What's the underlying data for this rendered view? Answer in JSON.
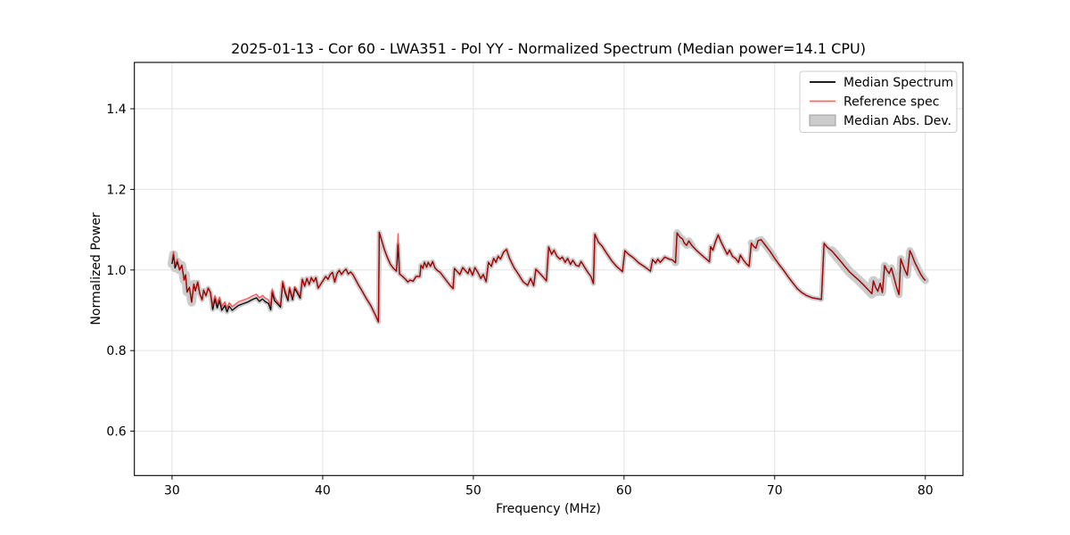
{
  "figure": {
    "title": "2025-01-13 - Cor 60 - LWA351 - Pol YY - Normalized Spectrum (Median power=14.1 CPU)"
  },
  "chart_data": {
    "type": "line",
    "title": "2025-01-13 - Cor 60 - LWA351 - Pol YY - Normalized Spectrum (Median power=14.1 CPU)",
    "xlabel": "Frequency (MHz)",
    "ylabel": "Normalized Power",
    "xlim": [
      27.5,
      82.5
    ],
    "ylim": [
      0.49,
      1.515
    ],
    "xticks": [
      "30",
      "40",
      "50",
      "60",
      "70",
      "80"
    ],
    "yticks": [
      "0.6",
      "0.8",
      "1.0",
      "1.2",
      "1.4"
    ],
    "grid": true,
    "grid_color": "#e2e2e2",
    "background": "#ffffff",
    "legend": {
      "position": "upper right",
      "entries": [
        {
          "label": "Median Spectrum",
          "type": "line",
          "color": "#000000"
        },
        {
          "label": "Reference spec",
          "type": "line",
          "color": "#ff6666"
        },
        {
          "label": "Median Abs. Dev.",
          "type": "patch",
          "color": "#cccccc"
        }
      ]
    },
    "series": [
      {
        "name": "Median Spectrum",
        "color": "#000000",
        "line_width": 1.3,
        "points": [
          [
            30.0,
            1.015
          ],
          [
            30.1,
            1.038
          ],
          [
            30.2,
            1.005
          ],
          [
            30.35,
            1.02
          ],
          [
            30.5,
            1.0
          ],
          [
            30.65,
            1.012
          ],
          [
            30.8,
            0.975
          ],
          [
            30.9,
            0.988
          ],
          [
            31.0,
            0.945
          ],
          [
            31.15,
            0.957
          ],
          [
            31.3,
            0.92
          ],
          [
            31.45,
            0.965
          ],
          [
            31.55,
            0.948
          ],
          [
            31.7,
            0.97
          ],
          [
            31.85,
            0.94
          ],
          [
            32.0,
            0.926
          ],
          [
            32.1,
            0.95
          ],
          [
            32.25,
            0.936
          ],
          [
            32.4,
            0.955
          ],
          [
            32.55,
            0.944
          ],
          [
            32.7,
            0.902
          ],
          [
            32.85,
            0.928
          ],
          [
            33.0,
            0.906
          ],
          [
            33.15,
            0.924
          ],
          [
            33.3,
            0.9
          ],
          [
            33.5,
            0.912
          ],
          [
            33.65,
            0.896
          ],
          [
            33.8,
            0.91
          ],
          [
            34.0,
            0.9
          ],
          [
            34.2,
            0.906
          ],
          [
            34.4,
            0.912
          ],
          [
            34.7,
            0.916
          ],
          [
            35.0,
            0.92
          ],
          [
            35.3,
            0.926
          ],
          [
            35.6,
            0.931
          ],
          [
            35.8,
            0.922
          ],
          [
            36.0,
            0.928
          ],
          [
            36.2,
            0.921
          ],
          [
            36.4,
            0.917
          ],
          [
            36.55,
            0.901
          ],
          [
            36.65,
            0.944
          ],
          [
            36.8,
            0.924
          ],
          [
            37.0,
            0.916
          ],
          [
            37.2,
            0.908
          ],
          [
            37.35,
            0.968
          ],
          [
            37.5,
            0.944
          ],
          [
            37.7,
            0.924
          ],
          [
            37.8,
            0.953
          ],
          [
            38.0,
            0.926
          ],
          [
            38.15,
            0.954
          ],
          [
            38.3,
            0.944
          ],
          [
            38.5,
            0.93
          ],
          [
            38.65,
            0.977
          ],
          [
            38.8,
            0.96
          ],
          [
            38.95,
            0.979
          ],
          [
            39.1,
            0.964
          ],
          [
            39.25,
            0.981
          ],
          [
            39.4,
            0.971
          ],
          [
            39.55,
            0.981
          ],
          [
            39.7,
            0.955
          ],
          [
            39.85,
            0.964
          ],
          [
            40.0,
            0.972
          ],
          [
            40.2,
            0.984
          ],
          [
            40.35,
            0.977
          ],
          [
            40.5,
            0.989
          ],
          [
            40.65,
            0.994
          ],
          [
            40.8,
            0.97
          ],
          [
            40.95,
            0.991
          ],
          [
            41.1,
            0.999
          ],
          [
            41.25,
            0.989
          ],
          [
            41.4,
            0.997
          ],
          [
            41.55,
            1.002
          ],
          [
            41.7,
            0.99
          ],
          [
            41.85,
            0.995
          ],
          [
            42.0,
            0.989
          ],
          [
            42.2,
            0.975
          ],
          [
            42.4,
            0.961
          ],
          [
            42.6,
            0.949
          ],
          [
            42.9,
            0.929
          ],
          [
            43.2,
            0.911
          ],
          [
            43.5,
            0.888
          ],
          [
            43.7,
            0.871
          ],
          [
            43.76,
            1.093
          ],
          [
            43.9,
            1.075
          ],
          [
            44.1,
            1.05
          ],
          [
            44.3,
            1.03
          ],
          [
            44.5,
            1.014
          ],
          [
            44.7,
            1.004
          ],
          [
            44.9,
            0.997
          ],
          [
            45.0,
            1.062
          ],
          [
            45.1,
            0.99
          ],
          [
            45.3,
            0.984
          ],
          [
            45.5,
            0.977
          ],
          [
            45.65,
            0.97
          ],
          [
            45.8,
            0.975
          ],
          [
            46.0,
            0.972
          ],
          [
            46.2,
            0.984
          ],
          [
            46.45,
            0.984
          ],
          [
            46.52,
            1.012
          ],
          [
            46.65,
            1.004
          ],
          [
            46.75,
            1.019
          ],
          [
            46.9,
            1.007
          ],
          [
            47.0,
            1.019
          ],
          [
            47.15,
            1.009
          ],
          [
            47.3,
            1.021
          ],
          [
            47.45,
            1.005
          ],
          [
            47.6,
            0.999
          ],
          [
            47.8,
            0.994
          ],
          [
            48.0,
            0.984
          ],
          [
            48.2,
            0.974
          ],
          [
            48.45,
            0.962
          ],
          [
            48.65,
            0.954
          ],
          [
            48.75,
            1.004
          ],
          [
            48.9,
            0.997
          ],
          [
            49.1,
            0.989
          ],
          [
            49.3,
            1.006
          ],
          [
            49.5,
            0.997
          ],
          [
            49.65,
            0.991
          ],
          [
            49.75,
            1.004
          ],
          [
            49.95,
            0.987
          ],
          [
            50.1,
            1.006
          ],
          [
            50.3,
            0.994
          ],
          [
            50.5,
            0.979
          ],
          [
            50.65,
            0.989
          ],
          [
            50.85,
            0.971
          ],
          [
            51.0,
            1.019
          ],
          [
            51.2,
            1.009
          ],
          [
            51.35,
            1.029
          ],
          [
            51.5,
            1.019
          ],
          [
            51.65,
            1.034
          ],
          [
            51.8,
            1.027
          ],
          [
            52.0,
            1.044
          ],
          [
            52.2,
            1.051
          ],
          [
            52.4,
            1.029
          ],
          [
            52.7,
            1.006
          ],
          [
            53.0,
            0.989
          ],
          [
            53.3,
            0.971
          ],
          [
            53.6,
            0.962
          ],
          [
            53.8,
            0.979
          ],
          [
            54.0,
            0.961
          ],
          [
            54.15,
            1.002
          ],
          [
            54.35,
            0.994
          ],
          [
            54.6,
            0.984
          ],
          [
            54.85,
            0.973
          ],
          [
            55.0,
            1.057
          ],
          [
            55.2,
            1.039
          ],
          [
            55.35,
            1.049
          ],
          [
            55.55,
            1.034
          ],
          [
            55.75,
            1.027
          ],
          [
            55.9,
            1.032
          ],
          [
            56.1,
            1.019
          ],
          [
            56.25,
            1.029
          ],
          [
            56.45,
            1.014
          ],
          [
            56.6,
            1.024
          ],
          [
            56.8,
            1.012
          ],
          [
            57.0,
            1.009
          ],
          [
            57.15,
            1.021
          ],
          [
            57.4,
            1.006
          ],
          [
            57.6,
            0.994
          ],
          [
            57.8,
            0.984
          ],
          [
            57.97,
            0.966
          ],
          [
            58.06,
            1.089
          ],
          [
            58.3,
            1.069
          ],
          [
            58.55,
            1.059
          ],
          [
            58.8,
            1.044
          ],
          [
            59.2,
            1.022
          ],
          [
            59.5,
            1.009
          ],
          [
            59.9,
            0.996
          ],
          [
            60.06,
            1.048
          ],
          [
            60.3,
            1.039
          ],
          [
            60.6,
            1.031
          ],
          [
            61.0,
            1.017
          ],
          [
            61.4,
            1.007
          ],
          [
            61.75,
            0.997
          ],
          [
            61.9,
            1.026
          ],
          [
            62.1,
            1.017
          ],
          [
            62.25,
            1.027
          ],
          [
            62.4,
            1.019
          ],
          [
            62.55,
            1.025
          ],
          [
            62.7,
            1.032
          ],
          [
            63.0,
            1.027
          ],
          [
            63.2,
            1.025
          ],
          [
            63.42,
            1.018
          ],
          [
            63.52,
            1.092
          ],
          [
            63.7,
            1.082
          ],
          [
            63.88,
            1.077
          ],
          [
            64.0,
            1.067
          ],
          [
            64.15,
            1.061
          ],
          [
            64.3,
            1.072
          ],
          [
            64.5,
            1.061
          ],
          [
            64.8,
            1.049
          ],
          [
            65.1,
            1.039
          ],
          [
            65.3,
            1.032
          ],
          [
            65.5,
            1.026
          ],
          [
            65.67,
            1.02
          ],
          [
            65.75,
            1.058
          ],
          [
            65.9,
            1.049
          ],
          [
            66.05,
            1.068
          ],
          [
            66.25,
            1.087
          ],
          [
            66.45,
            1.069
          ],
          [
            66.65,
            1.054
          ],
          [
            66.85,
            1.039
          ],
          [
            67.0,
            1.049
          ],
          [
            67.2,
            1.034
          ],
          [
            67.42,
            1.028
          ],
          [
            67.6,
            1.019
          ],
          [
            67.72,
            1.037
          ],
          [
            67.9,
            1.026
          ],
          [
            68.1,
            1.016
          ],
          [
            68.3,
            1.009
          ],
          [
            68.45,
            1.067
          ],
          [
            68.6,
            1.059
          ],
          [
            68.75,
            1.054
          ],
          [
            68.9,
            1.073
          ],
          [
            69.1,
            1.075
          ],
          [
            69.35,
            1.063
          ],
          [
            69.7,
            1.046
          ],
          [
            70.0,
            1.029
          ],
          [
            70.3,
            1.013
          ],
          [
            70.6,
            0.999
          ],
          [
            70.9,
            0.983
          ],
          [
            71.2,
            0.968
          ],
          [
            71.5,
            0.954
          ],
          [
            71.8,
            0.944
          ],
          [
            72.1,
            0.937
          ],
          [
            72.5,
            0.931
          ],
          [
            72.8,
            0.929
          ],
          [
            73.1,
            0.927
          ],
          [
            73.28,
            1.066
          ],
          [
            73.5,
            1.056
          ],
          [
            73.8,
            1.047
          ],
          [
            74.1,
            1.034
          ],
          [
            74.4,
            1.021
          ],
          [
            74.7,
            1.007
          ],
          [
            75.0,
            0.994
          ],
          [
            75.3,
            0.984
          ],
          [
            75.6,
            0.974
          ],
          [
            75.9,
            0.963
          ],
          [
            76.2,
            0.951
          ],
          [
            76.45,
            0.941
          ],
          [
            76.55,
            0.973
          ],
          [
            76.7,
            0.957
          ],
          [
            76.85,
            0.947
          ],
          [
            77.0,
            0.967
          ],
          [
            77.15,
            0.944
          ],
          [
            77.3,
            1.011
          ],
          [
            77.45,
            0.999
          ],
          [
            77.6,
            0.991
          ],
          [
            77.75,
            1.005
          ],
          [
            77.9,
            0.984
          ],
          [
            78.1,
            0.956
          ],
          [
            78.25,
            0.939
          ],
          [
            78.37,
            1.028
          ],
          [
            78.5,
            1.014
          ],
          [
            78.65,
            0.999
          ],
          [
            78.8,
            0.987
          ],
          [
            78.97,
            1.048
          ],
          [
            79.1,
            1.038
          ],
          [
            79.3,
            1.019
          ],
          [
            79.5,
            1.004
          ],
          [
            79.7,
            0.989
          ],
          [
            79.9,
            0.978
          ],
          [
            80.0,
            0.974
          ]
        ]
      },
      {
        "name": "Reference spec",
        "color": "#ff0000",
        "opacity": 0.65,
        "line_width": 1.4,
        "derived_from": "Median Spectrum",
        "offset_regions": [
          [
            30.0,
            30.4,
            0.007
          ],
          [
            32.6,
            36.9,
            0.009
          ],
          [
            37.0,
            38.6,
            0.005
          ]
        ],
        "overrides": [
          [
            45.0,
            1.09
          ]
        ]
      },
      {
        "name": "Median Abs. Dev.",
        "type": "band",
        "color": "#c8c8c8",
        "opacity": 0.9,
        "half_width_default": 0.006,
        "wide_regions": [
          [
            29.9,
            31.6,
            0.011
          ],
          [
            63.4,
            64.6,
            0.009
          ],
          [
            68.4,
            70.1,
            0.009
          ],
          [
            73.6,
            77.0,
            0.012
          ],
          [
            77.2,
            80.0,
            0.009
          ]
        ]
      }
    ]
  }
}
